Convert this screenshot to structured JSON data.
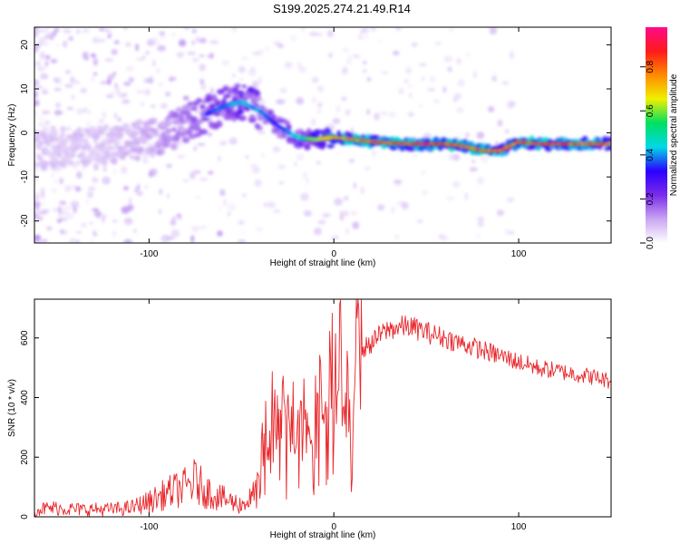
{
  "figure": {
    "title": "S199.2025.274.21.49.R14"
  },
  "colors": {
    "snr_line": "#e8262a",
    "spectrogram_palette": [
      "#ffffff",
      "#c9a6f2",
      "#7a2bea",
      "#2b00ff",
      "#00d8e8",
      "#00e060",
      "#f0f000",
      "#ff8a00",
      "#ff1a1a",
      "#ff0a8a"
    ]
  },
  "chart_data": [
    {
      "type": "heatmap",
      "name": "spectrogram",
      "xlabel": "Height of straight line (km)",
      "ylabel": "Frequency (Hz)",
      "xlim": [
        -162,
        150
      ],
      "ylim": [
        -25,
        24
      ],
      "xticks": [
        -100,
        0,
        100
      ],
      "yticks": [
        20,
        10,
        0,
        -10,
        -20
      ],
      "colorbar": {
        "label": "Normalized spectral amplitude",
        "range": [
          0.0,
          0.98
        ],
        "ticks": [
          0.0,
          0.2,
          0.4,
          0.6,
          0.8
        ]
      },
      "ridge": {
        "description": "dominant frequency ridge vs height",
        "x": [
          -162,
          -140,
          -120,
          -100,
          -80,
          -60,
          -50,
          -40,
          -30,
          -20,
          -10,
          0,
          20,
          40,
          60,
          70,
          80,
          90,
          95,
          100,
          110,
          120,
          130,
          150
        ],
        "frequency": [
          -3.5,
          -3.0,
          -2.5,
          -1.5,
          2.0,
          6.0,
          7.0,
          5.0,
          1.5,
          -1.0,
          -1.5,
          -1.0,
          -2.0,
          -2.5,
          -2.5,
          -3.0,
          -4.0,
          -4.0,
          -3.0,
          -2.0,
          -2.5,
          -2.5,
          -2.5,
          -2.5
        ],
        "peak_amplitude": [
          0.15,
          0.15,
          0.15,
          0.2,
          0.3,
          0.4,
          0.45,
          0.4,
          0.35,
          0.5,
          0.6,
          0.8,
          0.9,
          0.92,
          0.9,
          0.9,
          0.85,
          0.85,
          0.8,
          0.85,
          0.9,
          0.9,
          0.9,
          0.9
        ]
      }
    },
    {
      "type": "line",
      "name": "snr",
      "xlabel": "Height of straight line (km)",
      "ylabel": "SNR (10 * v/v)",
      "xlim": [
        -162,
        150
      ],
      "ylim": [
        0,
        730
      ],
      "xticks": [
        -100,
        0,
        100
      ],
      "yticks": [
        0,
        200,
        400,
        600
      ],
      "series": [
        {
          "name": "SNR",
          "x": [
            -162,
            -150,
            -140,
            -130,
            -120,
            -110,
            -100,
            -90,
            -80,
            -75,
            -70,
            -60,
            -50,
            -45,
            -40,
            -38,
            -35,
            -30,
            -25,
            -20,
            -15,
            -10,
            -5,
            0,
            5,
            8,
            10,
            12,
            14,
            15,
            20,
            25,
            30,
            40,
            50,
            60,
            70,
            80,
            90,
            100,
            110,
            120,
            130,
            140,
            150
          ],
          "y": [
            25,
            30,
            25,
            25,
            25,
            30,
            50,
            80,
            100,
            120,
            90,
            60,
            40,
            60,
            100,
            300,
            250,
            320,
            350,
            300,
            380,
            360,
            420,
            450,
            480,
            350,
            80,
            600,
            700,
            560,
            580,
            610,
            630,
            640,
            620,
            600,
            580,
            560,
            540,
            520,
            500,
            490,
            480,
            470,
            455
          ]
        }
      ]
    }
  ]
}
